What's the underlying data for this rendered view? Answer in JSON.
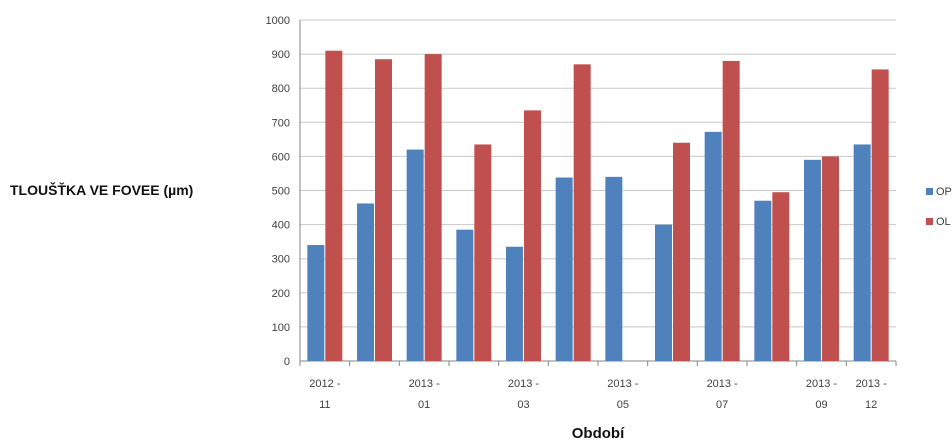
{
  "chart_data": {
    "type": "bar",
    "title": "",
    "ylabel": "TLOUŠŤKA VE FOVEE (µm)",
    "xlabel": "Období",
    "ylim": [
      0,
      1000
    ],
    "yticks": [
      0,
      100,
      200,
      300,
      400,
      500,
      600,
      700,
      800,
      900,
      1000
    ],
    "grid": true,
    "legend_position": "right",
    "categories": [
      "2012 - 11",
      "",
      "2013 - 01",
      "",
      "2013 - 03",
      "",
      "2013 - 05",
      "",
      "2013 - 07",
      "",
      "2013 - 09",
      "2013 - 12"
    ],
    "category_label_lines": [
      [
        "2012 -",
        "11"
      ],
      [],
      [
        "2013 -",
        "01"
      ],
      [],
      [
        "2013 -",
        "03"
      ],
      [],
      [
        "2013 -",
        "05"
      ],
      [],
      [
        "2013 -",
        "07"
      ],
      [],
      [
        "2013 -",
        "09"
      ],
      [
        "2013 -",
        "12"
      ]
    ],
    "series": [
      {
        "name": "OP",
        "color": "#4F81BD",
        "values": [
          340,
          462,
          620,
          385,
          335,
          538,
          540,
          400,
          672,
          470,
          590,
          635
        ]
      },
      {
        "name": "OL",
        "color": "#C0504D",
        "values": [
          910,
          885,
          900,
          635,
          735,
          870,
          null,
          640,
          880,
          495,
          600,
          855
        ]
      }
    ]
  }
}
